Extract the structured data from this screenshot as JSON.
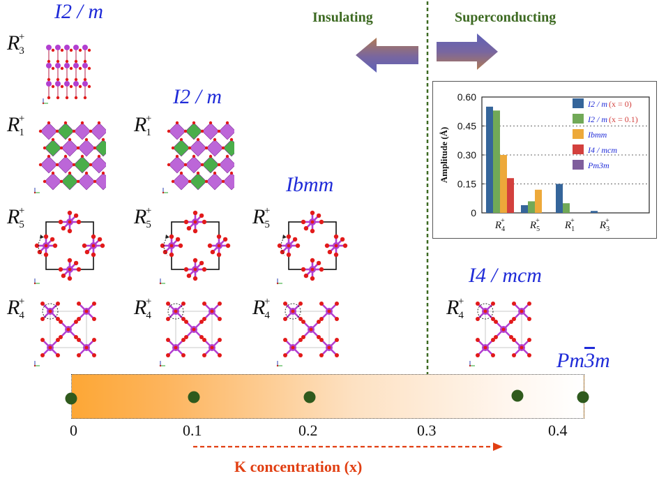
{
  "space_groups": {
    "col1": "I2 / m",
    "col2": "I2 / m",
    "col3": "Ibmm",
    "col4": "I4 / mcm",
    "cubic": "Pm3m"
  },
  "modes": {
    "r3": {
      "base": "R",
      "sub": "3",
      "sup": "+"
    },
    "r1": {
      "base": "R",
      "sub": "1",
      "sup": "+"
    },
    "r5": {
      "base": "R",
      "sub": "5",
      "sup": "+"
    },
    "r4": {
      "base": "R",
      "sub": "4",
      "sup": "+"
    }
  },
  "phases": {
    "left": "Insulating",
    "right": "Superconducting"
  },
  "axis": {
    "ticks": [
      "0",
      "0.1",
      "0.2",
      "0.3",
      "0.4"
    ],
    "label": "K concentration (x)"
  },
  "colors": {
    "space_group": "#1f2bd8",
    "phase_text": "#3d6a22",
    "axis_label": "#e13f12",
    "dot": "#2f5a1d",
    "gradient_start": "#fda735",
    "oxygen": "#e21a1a",
    "bismuth": "#b23fd0"
  },
  "chart_data": {
    "type": "bar",
    "ylabel": "Amplitude (Å)",
    "ylim": [
      0,
      0.6
    ],
    "yticks": [
      "0.60",
      "0.45",
      "0.30",
      "0.15",
      "0"
    ],
    "grid": "dotted horizontal",
    "legend_position": "top-right",
    "categories": [
      {
        "base": "R",
        "sub": "4",
        "sup": "+"
      },
      {
        "base": "R",
        "sub": "5",
        "sup": "+"
      },
      {
        "base": "R",
        "sub": "1",
        "sup": "+"
      },
      {
        "base": "R",
        "sub": "3",
        "sup": "+"
      }
    ],
    "series": [
      {
        "name": "I2 / m",
        "cond": "(x = 0)",
        "color": "#35659a",
        "values": [
          0.55,
          0.04,
          0.15,
          0.01
        ]
      },
      {
        "name": "I2 / m",
        "cond": "(x = 0.1)",
        "color": "#71a957",
        "values": [
          0.53,
          0.06,
          0.05,
          0
        ]
      },
      {
        "name": "Ibmm",
        "cond": "",
        "color": "#eda93a",
        "values": [
          0.3,
          0.12,
          0,
          0
        ]
      },
      {
        "name": "I4 / mcm",
        "cond": "",
        "color": "#d3403d",
        "values": [
          0.18,
          0,
          0,
          0
        ]
      },
      {
        "name": "Pm3m",
        "cond": "",
        "color": "#7f5e9c",
        "values": [
          0,
          0,
          0,
          0
        ]
      }
    ]
  }
}
